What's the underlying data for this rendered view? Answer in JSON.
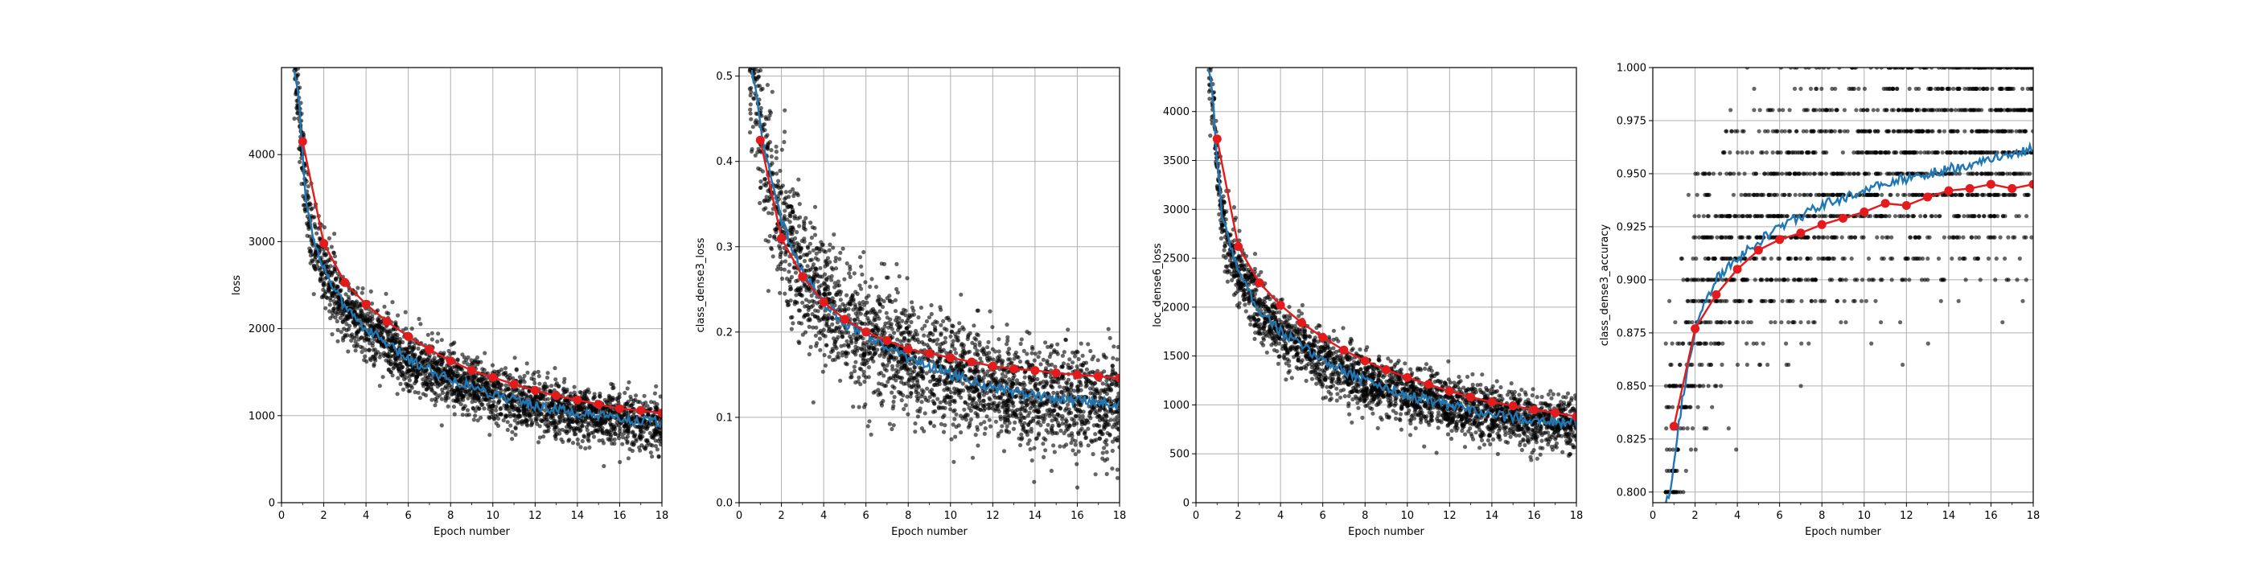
{
  "figure": {
    "background": "#ffffff",
    "grid_color": "#b0b0b0",
    "colors": {
      "scatter": "#000000",
      "batch_line": "#1f77b4",
      "epoch_markers": "#e41a1c"
    }
  },
  "chart_data": [
    {
      "type": "line",
      "id": "loss",
      "ylabel": "loss",
      "xlabel": "Epoch number",
      "xlim": [
        0,
        18
      ],
      "ylim": [
        0,
        5000
      ],
      "xticks": [
        0,
        2,
        4,
        6,
        8,
        10,
        12,
        14,
        16,
        18
      ],
      "yticks": [
        0,
        1000,
        2000,
        3000,
        4000
      ],
      "ytick_labels": [
        "0",
        "1000",
        "2000",
        "3000",
        "4000"
      ],
      "grid": true,
      "scatter": {
        "x_start": 0.6,
        "x_end": 18,
        "count": 2600,
        "noise": 230
      },
      "batch_line": {
        "x": [
          0.6,
          0.8,
          1.0,
          1.2,
          1.5,
          2.0,
          2.5,
          3.0,
          4.0,
          5.0,
          6.0,
          8.0,
          10.0,
          12.0,
          14.0,
          16.0,
          18.0
        ],
        "y": [
          5000,
          4700,
          4000,
          3400,
          3050,
          2700,
          2450,
          2250,
          2000,
          1820,
          1650,
          1420,
          1250,
          1120,
          1020,
          960,
          920
        ]
      },
      "epoch_markers": {
        "x": [
          1,
          2,
          3,
          4,
          5,
          6,
          7,
          8,
          9,
          10,
          11,
          12,
          13,
          14,
          15,
          16,
          17,
          18
        ],
        "y": [
          4150,
          2980,
          2530,
          2280,
          2080,
          1910,
          1760,
          1630,
          1520,
          1440,
          1360,
          1290,
          1230,
          1180,
          1130,
          1080,
          1060,
          1030
        ]
      }
    },
    {
      "type": "line",
      "id": "class_dense3_loss",
      "ylabel": "class_dense3_loss",
      "xlabel": "Epoch number",
      "xlim": [
        0,
        18
      ],
      "ylim": [
        0,
        0.51
      ],
      "xticks": [
        0,
        2,
        4,
        6,
        8,
        10,
        12,
        14,
        16,
        18
      ],
      "yticks": [
        0,
        0.1,
        0.2,
        0.3,
        0.4,
        0.5
      ],
      "ytick_labels": [
        "0.0",
        "0.1",
        "0.2",
        "0.3",
        "0.4",
        "0.5"
      ],
      "grid": true,
      "scatter": {
        "x_start": 0.5,
        "x_end": 18,
        "count": 2600,
        "noise": 0.045
      },
      "batch_line": {
        "x": [
          0.6,
          0.8,
          1.0,
          1.5,
          2.0,
          2.5,
          3.0,
          4.0,
          5.0,
          6.0,
          8.0,
          10.0,
          12.0,
          14.0,
          16.0,
          18.0
        ],
        "y": [
          0.51,
          0.48,
          0.44,
          0.38,
          0.33,
          0.3,
          0.27,
          0.235,
          0.21,
          0.195,
          0.17,
          0.15,
          0.135,
          0.125,
          0.12,
          0.115
        ]
      },
      "epoch_markers": {
        "x": [
          1,
          2,
          3,
          4,
          5,
          6,
          7,
          8,
          9,
          10,
          11,
          12,
          13,
          14,
          15,
          16,
          17,
          18
        ],
        "y": [
          0.425,
          0.31,
          0.265,
          0.235,
          0.215,
          0.2,
          0.19,
          0.18,
          0.175,
          0.17,
          0.165,
          0.16,
          0.157,
          0.155,
          0.152,
          0.15,
          0.148,
          0.146
        ]
      }
    },
    {
      "type": "line",
      "id": "loc_dense6_loss",
      "ylabel": "loc_dense6_loss",
      "xlabel": "Epoch number",
      "xlim": [
        0,
        18
      ],
      "ylim": [
        0,
        4450
      ],
      "xticks": [
        0,
        2,
        4,
        6,
        8,
        10,
        12,
        14,
        16,
        18
      ],
      "yticks": [
        0,
        500,
        1000,
        1500,
        2000,
        2500,
        3000,
        3500,
        4000
      ],
      "ytick_labels": [
        "0",
        "500",
        "1000",
        "1500",
        "2000",
        "2500",
        "3000",
        "3500",
        "4000"
      ],
      "grid": true,
      "scatter": {
        "x_start": 0.6,
        "x_end": 18,
        "count": 2600,
        "noise": 200
      },
      "batch_line": {
        "x": [
          0.6,
          0.8,
          1.0,
          1.2,
          1.5,
          2.0,
          2.5,
          3.0,
          4.0,
          5.0,
          6.0,
          8.0,
          10.0,
          12.0,
          14.0,
          16.0,
          18.0
        ],
        "y": [
          4450,
          4100,
          3500,
          3000,
          2700,
          2400,
          2150,
          1980,
          1750,
          1600,
          1460,
          1250,
          1100,
          990,
          900,
          850,
          810
        ]
      },
      "epoch_markers": {
        "x": [
          1,
          2,
          3,
          4,
          5,
          6,
          7,
          8,
          9,
          10,
          11,
          12,
          13,
          14,
          15,
          16,
          17,
          18
        ],
        "y": [
          3720,
          2620,
          2250,
          2020,
          1840,
          1690,
          1560,
          1450,
          1360,
          1280,
          1210,
          1140,
          1080,
          1030,
          990,
          950,
          920,
          880
        ]
      }
    },
    {
      "type": "line",
      "id": "class_dense3_accuracy",
      "ylabel": "class_dense3_accuracy",
      "xlabel": "Epoch number",
      "xlim": [
        0,
        18
      ],
      "ylim": [
        0.795,
        1.0
      ],
      "xticks": [
        0,
        2,
        4,
        6,
        8,
        10,
        12,
        14,
        16,
        18
      ],
      "yticks": [
        0.8,
        0.825,
        0.85,
        0.875,
        0.9,
        0.925,
        0.95,
        0.975,
        1.0
      ],
      "ytick_labels": [
        "0.800",
        "0.825",
        "0.850",
        "0.875",
        "0.900",
        "0.925",
        "0.950",
        "0.975",
        "1.000"
      ],
      "grid": true,
      "scatter": {
        "x_start": 0.6,
        "x_end": 18,
        "count": 1800,
        "quantized_step": 0.01,
        "min": 0.8,
        "max": 1.0
      },
      "batch_line": {
        "x": [
          0.6,
          0.8,
          1.0,
          1.2,
          1.5,
          2.0,
          2.5,
          3.0,
          4.0,
          5.0,
          6.0,
          8.0,
          10.0,
          12.0,
          14.0,
          16.0,
          18.0
        ],
        "y": [
          0.795,
          0.8,
          0.815,
          0.83,
          0.85,
          0.875,
          0.89,
          0.9,
          0.91,
          0.918,
          0.925,
          0.935,
          0.942,
          0.948,
          0.952,
          0.957,
          0.962
        ]
      },
      "epoch_markers": {
        "x": [
          1,
          2,
          3,
          4,
          5,
          6,
          7,
          8,
          9,
          10,
          11,
          12,
          13,
          14,
          15,
          16,
          17,
          18
        ],
        "y": [
          0.831,
          0.877,
          0.893,
          0.905,
          0.914,
          0.919,
          0.922,
          0.926,
          0.929,
          0.932,
          0.936,
          0.935,
          0.939,
          0.942,
          0.943,
          0.945,
          0.943,
          0.945
        ]
      }
    }
  ]
}
